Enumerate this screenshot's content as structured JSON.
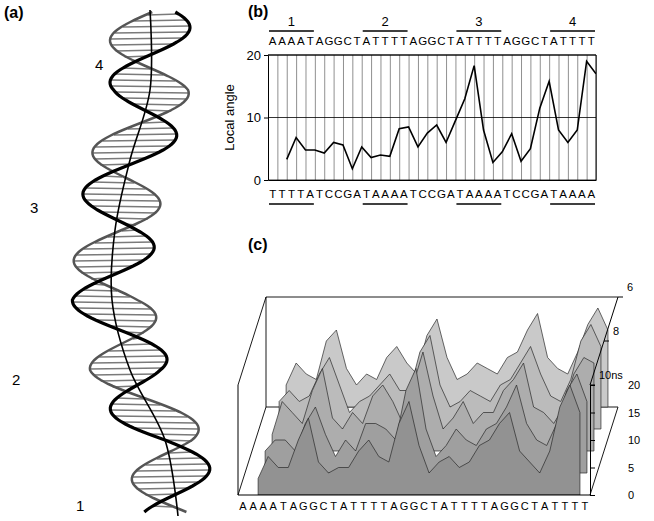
{
  "diagram": {
    "panel_label": "(a)",
    "labels": [
      "1",
      "2",
      "3",
      "4"
    ]
  },
  "chart_data": [
    {
      "type": "line",
      "panel_label": "(b)",
      "y_label": "Local angle",
      "top_strand": "AAAATAGGCTATTTTAGGCTATTTTAGGCTATTTT",
      "bottom_strand": "TTTTATCCGATAAAATCCGATAAAATCCGATAAAA",
      "segments": [
        {
          "label": "1",
          "start": 0,
          "end": 5
        },
        {
          "label": "2",
          "start": 10,
          "end": 15
        },
        {
          "label": "3",
          "start": 20,
          "end": 25
        },
        {
          "label": "4",
          "start": 30,
          "end": 35
        }
      ],
      "bottom_segments": [
        {
          "start": 0,
          "end": 5
        },
        {
          "start": 10,
          "end": 15
        },
        {
          "start": 20,
          "end": 25
        },
        {
          "start": 30,
          "end": 35
        }
      ],
      "x": [
        2,
        3,
        4,
        5,
        6,
        7,
        8,
        9,
        10,
        11,
        12,
        13,
        14,
        15,
        16,
        17,
        18,
        19,
        20,
        21,
        22,
        23,
        24,
        25,
        26,
        27,
        28,
        29,
        30,
        31,
        32,
        33,
        34,
        35
      ],
      "values": [
        3.3,
        6.8,
        4.8,
        4.8,
        4.3,
        6.0,
        5.6,
        1.8,
        5.3,
        3.6,
        4.0,
        3.8,
        8.2,
        8.5,
        5.3,
        7.5,
        8.8,
        6.0,
        9.5,
        13.0,
        18.3,
        8.0,
        2.8,
        4.5,
        7.4,
        3.0,
        5.0,
        11.5,
        15.8,
        8.0,
        6.0,
        8.0,
        19.0,
        17.0
      ],
      "color": "#000000",
      "xlim": [
        0,
        35
      ],
      "xticks": [
        0,
        1,
        2,
        3,
        4,
        5,
        6,
        7,
        8,
        9,
        10,
        11,
        12,
        13,
        14,
        15,
        16,
        17,
        18,
        19,
        20,
        21,
        22,
        23,
        24,
        25,
        26,
        27,
        28,
        29,
        30,
        31,
        32,
        33,
        34,
        35
      ],
      "ylim": [
        0,
        20
      ],
      "yticks": [
        0,
        10,
        20
      ],
      "grid": true,
      "tick_labels": "y"
    },
    {
      "type": "surface",
      "panel_label": "(c)",
      "sequence": "AAAATAGGCTATTTTAGGCTATTTTAGGCTATTTT",
      "x": [
        2,
        3,
        4,
        5,
        6,
        7,
        8,
        9,
        10,
        11,
        12,
        13,
        14,
        15,
        16,
        17,
        18,
        19,
        20,
        21,
        22,
        23,
        24,
        25,
        26,
        27,
        28,
        29,
        30,
        31,
        32,
        33,
        34
      ],
      "y": [
        6,
        7,
        8,
        9,
        10
      ],
      "values": [
        [
          4,
          8,
          6,
          5,
          12,
          14,
          7,
          4,
          6,
          5,
          9,
          11,
          8,
          6,
          13,
          16,
          9,
          5,
          6,
          8,
          7,
          6,
          9,
          10,
          14,
          17,
          9,
          7,
          6,
          10,
          15,
          18,
          14
        ],
        [
          5,
          7,
          5,
          6,
          10,
          13,
          8,
          3,
          5,
          6,
          8,
          10,
          7,
          7,
          14,
          17,
          8,
          4,
          5,
          7,
          6,
          5,
          8,
          9,
          12,
          15,
          10,
          6,
          5,
          9,
          16,
          19,
          15
        ],
        [
          3,
          9,
          7,
          5,
          11,
          15,
          6,
          4,
          7,
          5,
          10,
          12,
          9,
          5,
          12,
          18,
          10,
          4,
          6,
          9,
          5,
          7,
          7,
          11,
          13,
          16,
          8,
          7,
          5,
          8,
          14,
          17,
          16
        ],
        [
          4,
          6,
          6,
          4,
          9,
          12,
          7,
          3,
          6,
          4,
          9,
          9,
          8,
          6,
          15,
          19,
          8,
          3,
          5,
          8,
          6,
          5,
          8,
          9,
          12,
          16,
          9,
          6,
          5,
          9,
          15,
          18,
          13
        ],
        [
          3,
          7,
          5,
          5,
          10,
          14,
          6,
          4,
          5,
          5,
          8,
          10,
          7,
          6,
          13,
          17,
          9,
          4,
          6,
          7,
          5,
          6,
          9,
          10,
          13,
          15,
          8,
          6,
          4,
          8,
          16,
          20,
          15
        ]
      ],
      "color": "#a8a8a8",
      "xlim": [
        0,
        35
      ],
      "ylim": [
        6,
        10
      ],
      "yticks": [
        6,
        8,
        {
          "value": 10,
          "label": "10ns"
        }
      ],
      "zlim": [
        0,
        20
      ],
      "zticks": [
        0,
        5,
        10,
        15,
        20
      ]
    }
  ]
}
